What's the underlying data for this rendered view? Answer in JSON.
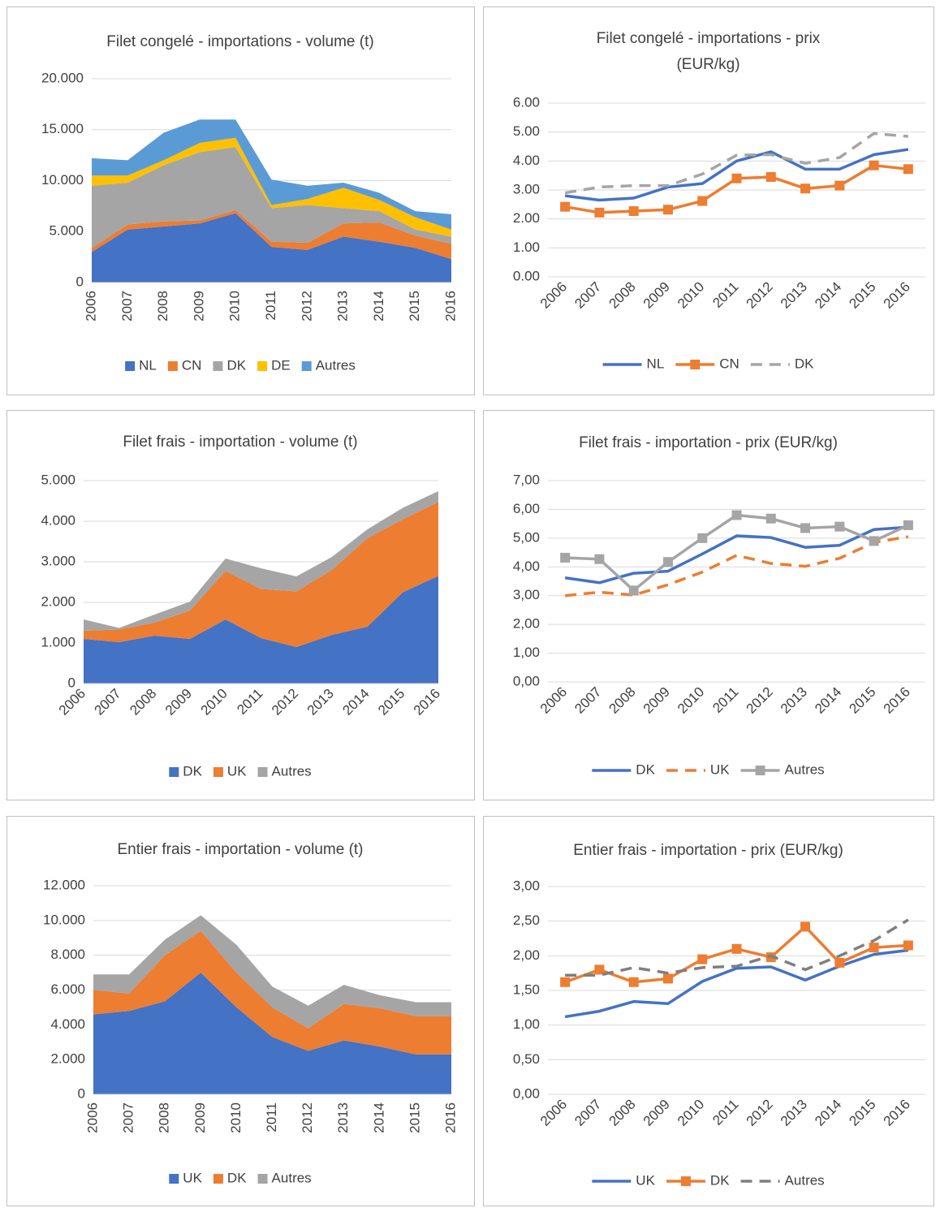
{
  "chart_data": [
    {
      "type": "area",
      "title": "Filet congelé - importations - volume (t)",
      "categories": [
        "2006",
        "2007",
        "2008",
        "2009",
        "2010",
        "2011",
        "2012",
        "2013",
        "2014",
        "2015",
        "2016"
      ],
      "series": [
        {
          "name": "NL",
          "color": "#4472c4",
          "values": [
            3000,
            5200,
            5500,
            5800,
            6800,
            3500,
            3200,
            4500,
            4000,
            3400,
            2300
          ]
        },
        {
          "name": "CN",
          "color": "#ed7d31",
          "values": [
            400,
            500,
            500,
            300,
            300,
            500,
            700,
            1300,
            1900,
            1200,
            1500
          ]
        },
        {
          "name": "DK",
          "color": "#a5a5a5",
          "values": [
            6100,
            4100,
            5500,
            6700,
            6200,
            3300,
            3700,
            1500,
            1100,
            600,
            700
          ]
        },
        {
          "name": "DE",
          "color": "#ffc000",
          "values": [
            1000,
            700,
            500,
            900,
            900,
            300,
            600,
            2000,
            1100,
            1200,
            700
          ]
        },
        {
          "name": "Autres",
          "color": "#5b9bd5",
          "values": [
            1700,
            1500,
            2700,
            2300,
            1800,
            2500,
            1300,
            500,
            700,
            600,
            1500
          ]
        }
      ],
      "ylim": [
        0,
        20000
      ],
      "yticks": [
        0,
        {
          "value": 5000,
          "label": "5.000"
        },
        {
          "value": 10000,
          "label": "10.000"
        },
        {
          "value": 15000,
          "label": "15.000"
        },
        {
          "value": 20000,
          "label": "20.000"
        }
      ],
      "grid": true,
      "stacked": true,
      "legend": "bottom"
    },
    {
      "type": "line",
      "title": "Filet congelé - importations - prix (EUR/kg)",
      "categories": [
        "2006",
        "2007",
        "2008",
        "2009",
        "2010",
        "2011",
        "2012",
        "2013",
        "2014",
        "2015",
        "2016"
      ],
      "series": [
        {
          "name": "NL",
          "color": "#4472c4",
          "values": [
            2.8,
            2.65,
            2.72,
            3.1,
            3.22,
            4.0,
            4.32,
            3.72,
            3.72,
            4.22,
            4.4
          ]
        },
        {
          "name": "CN",
          "color": "#ed7d31",
          "marker": "square",
          "values": [
            2.42,
            2.22,
            2.27,
            2.32,
            2.62,
            3.4,
            3.45,
            3.05,
            3.15,
            3.85,
            3.72
          ]
        },
        {
          "name": "DK",
          "color": "#a5a5a5",
          "dash": true,
          "values": [
            2.9,
            3.1,
            3.15,
            3.15,
            3.55,
            4.2,
            4.22,
            3.92,
            4.12,
            4.95,
            4.85
          ]
        }
      ],
      "ylim": [
        0,
        6
      ],
      "yticks": [
        {
          "value": 0,
          "label": "0.00"
        },
        {
          "value": 1,
          "label": "1.00"
        },
        {
          "value": 2,
          "label": "2.00"
        },
        {
          "value": 3,
          "label": "3.00"
        },
        {
          "value": 4,
          "label": "4.00"
        },
        {
          "value": 5,
          "label": "5.00"
        },
        {
          "value": 6,
          "label": "6.00"
        }
      ],
      "grid": true,
      "legend": "bottom"
    },
    {
      "type": "area",
      "title": "Filet frais - importation - volume (t)",
      "categories": [
        "2006",
        "2007",
        "2008",
        "2009",
        "2010",
        "2011",
        "2012",
        "2013",
        "2014",
        "2015",
        "2016"
      ],
      "series": [
        {
          "name": "DK",
          "color": "#4472c4",
          "values": [
            1100,
            1020,
            1180,
            1100,
            1580,
            1120,
            900,
            1200,
            1400,
            2250,
            2650
          ]
        },
        {
          "name": "UK",
          "color": "#ed7d31",
          "values": [
            200,
            310,
            320,
            700,
            1190,
            1210,
            1370,
            1600,
            2180,
            1800,
            1820
          ]
        },
        {
          "name": "Autres",
          "color": "#a5a5a5",
          "values": [
            280,
            40,
            200,
            220,
            310,
            510,
            370,
            320,
            220,
            280,
            270
          ]
        }
      ],
      "ylim": [
        0,
        5000
      ],
      "yticks": [
        0,
        {
          "value": 1000,
          "label": "1.000"
        },
        {
          "value": 2000,
          "label": "2.000"
        },
        {
          "value": 3000,
          "label": "3.000"
        },
        {
          "value": 4000,
          "label": "4.000"
        },
        {
          "value": 5000,
          "label": "5.000"
        }
      ],
      "grid": true,
      "stacked": true,
      "legend": "bottom"
    },
    {
      "type": "line",
      "title": "Filet frais - importation - prix (EUR/kg)",
      "categories": [
        "2006",
        "2007",
        "2008",
        "2009",
        "2010",
        "2011",
        "2012",
        "2013",
        "2014",
        "2015",
        "2016"
      ],
      "series": [
        {
          "name": "DK",
          "color": "#4472c4",
          "values": [
            3.62,
            3.45,
            3.78,
            3.85,
            4.45,
            5.08,
            5.02,
            4.68,
            4.75,
            5.3,
            5.38
          ]
        },
        {
          "name": "UK",
          "color": "#ed7d31",
          "dash": true,
          "values": [
            3.0,
            3.12,
            3.02,
            3.38,
            3.82,
            4.4,
            4.12,
            4.02,
            4.3,
            4.85,
            5.05
          ]
        },
        {
          "name": "Autres",
          "color": "#a5a5a5",
          "marker": "square",
          "values": [
            4.32,
            4.27,
            3.18,
            4.17,
            5.0,
            5.8,
            5.68,
            5.35,
            5.4,
            4.9,
            5.45
          ]
        }
      ],
      "ylim": [
        0,
        7
      ],
      "yticks": [
        {
          "value": 0,
          "label": "0,00"
        },
        {
          "value": 1,
          "label": "1,00"
        },
        {
          "value": 2,
          "label": "2,00"
        },
        {
          "value": 3,
          "label": "3,00"
        },
        {
          "value": 4,
          "label": "4,00"
        },
        {
          "value": 5,
          "label": "5,00"
        },
        {
          "value": 6,
          "label": "6,00"
        },
        {
          "value": 7,
          "label": "7,00"
        }
      ],
      "grid": true,
      "legend": "bottom"
    },
    {
      "type": "area",
      "title": "Entier frais - importation - volume (t)",
      "categories": [
        "2006",
        "2007",
        "2008",
        "2009",
        "2010",
        "2011",
        "2012",
        "2013",
        "2014",
        "2015",
        "2016"
      ],
      "series": [
        {
          "name": "UK",
          "color": "#4472c4",
          "values": [
            4600,
            4800,
            5350,
            7000,
            5000,
            3300,
            2500,
            3100,
            2750,
            2300,
            2300
          ]
        },
        {
          "name": "DK",
          "color": "#ed7d31",
          "values": [
            1400,
            1000,
            2650,
            2400,
            2000,
            1700,
            1300,
            2100,
            2200,
            2200,
            2200
          ]
        },
        {
          "name": "Autres",
          "color": "#a5a5a5",
          "values": [
            900,
            1100,
            900,
            900,
            1600,
            1200,
            1300,
            1100,
            750,
            800,
            800
          ]
        }
      ],
      "ylim": [
        0,
        12000
      ],
      "yticks": [
        0,
        {
          "value": 2000,
          "label": "2.000"
        },
        {
          "value": 4000,
          "label": "4.000"
        },
        {
          "value": 6000,
          "label": "6.000"
        },
        {
          "value": 8000,
          "label": "8.000"
        },
        {
          "value": 10000,
          "label": "10.000"
        },
        {
          "value": 12000,
          "label": "12.000"
        }
      ],
      "grid": true,
      "stacked": true,
      "legend": "bottom"
    },
    {
      "type": "line",
      "title": "Entier frais - importation - prix (EUR/kg)",
      "categories": [
        "2006",
        "2007",
        "2008",
        "2009",
        "2010",
        "2011",
        "2012",
        "2013",
        "2014",
        "2015",
        "2016"
      ],
      "series": [
        {
          "name": "UK",
          "color": "#4472c4",
          "values": [
            1.12,
            1.2,
            1.34,
            1.31,
            1.63,
            1.82,
            1.84,
            1.65,
            1.85,
            2.02,
            2.08
          ]
        },
        {
          "name": "DK",
          "color": "#ed7d31",
          "marker": "square",
          "values": [
            1.62,
            1.8,
            1.62,
            1.67,
            1.95,
            2.1,
            1.98,
            2.42,
            1.9,
            2.12,
            2.15
          ]
        },
        {
          "name": "Autres",
          "color": "#7f7f7f",
          "dash": true,
          "values": [
            1.72,
            1.72,
            1.83,
            1.75,
            1.83,
            1.85,
            2.0,
            1.8,
            2.0,
            2.22,
            2.52
          ]
        }
      ],
      "ylim": [
        0,
        3
      ],
      "yticks": [
        {
          "value": 0,
          "label": "0,00"
        },
        {
          "value": 0.5,
          "label": "0,50"
        },
        {
          "value": 1,
          "label": "1,00"
        },
        {
          "value": 1.5,
          "label": "1,50"
        },
        {
          "value": 2,
          "label": "2,00"
        },
        {
          "value": 2.5,
          "label": "2,50"
        },
        {
          "value": 3,
          "label": "3,00"
        }
      ],
      "grid": true,
      "legend": "bottom"
    }
  ]
}
